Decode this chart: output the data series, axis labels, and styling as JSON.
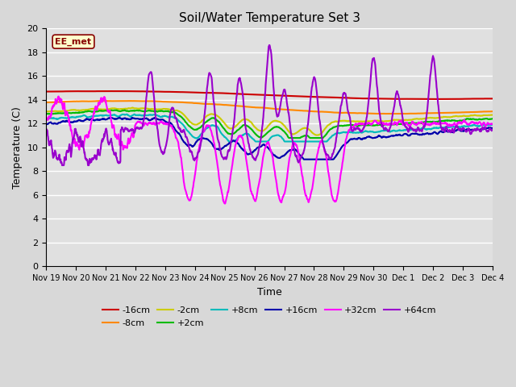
{
  "title": "Soil/Water Temperature Set 3",
  "xlabel": "Time",
  "ylabel": "Temperature (C)",
  "ylim": [
    0,
    20
  ],
  "yticks": [
    0,
    2,
    4,
    6,
    8,
    10,
    12,
    14,
    16,
    18,
    20
  ],
  "background_color": "#e0e0e0",
  "fig_facecolor": "#d8d8d8",
  "series": [
    {
      "label": "-16cm",
      "color": "#cc0000",
      "lw": 1.5
    },
    {
      "label": "-8cm",
      "color": "#ff8800",
      "lw": 1.5
    },
    {
      "label": "-2cm",
      "color": "#cccc00",
      "lw": 1.5
    },
    {
      "label": "+2cm",
      "color": "#00bb00",
      "lw": 1.5
    },
    {
      "label": "+8cm",
      "color": "#00bbbb",
      "lw": 1.5
    },
    {
      "label": "+16cm",
      "color": "#0000aa",
      "lw": 1.5
    },
    {
      "label": "+32cm",
      "color": "#ff00ff",
      "lw": 1.5
    },
    {
      "label": "+64cm",
      "color": "#9900cc",
      "lw": 1.5
    }
  ],
  "annotation_text": "EE_met",
  "annotation_color": "#880000",
  "annotation_bg": "#ffffcc",
  "xtick_labels": [
    "Nov 19",
    "Nov 20",
    "Nov 21",
    "Nov 22",
    "Nov 23",
    "Nov 24",
    "Nov 25",
    "Nov 26",
    "Nov 27",
    "Nov 28",
    "Nov 29",
    "Nov 30",
    "Dec 1",
    "Dec 2",
    "Dec 3",
    "Dec 4"
  ],
  "xtick_positions": [
    0,
    1,
    2,
    3,
    4,
    5,
    6,
    7,
    8,
    9,
    10,
    11,
    12,
    13,
    14,
    15
  ]
}
